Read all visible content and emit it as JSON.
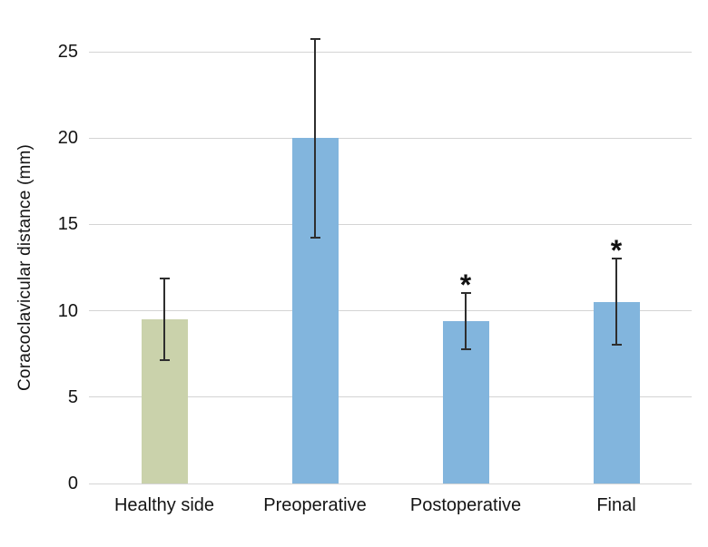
{
  "chart_data": {
    "type": "bar",
    "title": "",
    "xlabel": "",
    "ylabel": "Coracoclavicular distance (mm)",
    "ylim": [
      0,
      25
    ],
    "yticks": [
      0,
      5,
      10,
      15,
      20,
      25
    ],
    "grid": "horizontal",
    "legend": "none",
    "categories": [
      "Healthy side",
      "Preoperative",
      "Postoperative",
      "Final"
    ],
    "values": [
      9.5,
      20.0,
      9.4,
      10.5
    ],
    "error_low": [
      7.1,
      14.2,
      7.7,
      8.0
    ],
    "error_high": [
      11.9,
      25.8,
      11.1,
      13.1
    ],
    "significance": [
      "",
      "",
      "*",
      "*"
    ],
    "bar_colors": [
      "#cad2ab",
      "#82b5dd",
      "#82b5dd",
      "#82b5dd"
    ]
  },
  "colors": {
    "background": "#ffffff",
    "gridline": "#d4d4d4",
    "error_bar": "#2e2e2e",
    "text": "#141414",
    "healthy_bar": "#cad2ab",
    "operative_bar": "#82b5dd"
  }
}
